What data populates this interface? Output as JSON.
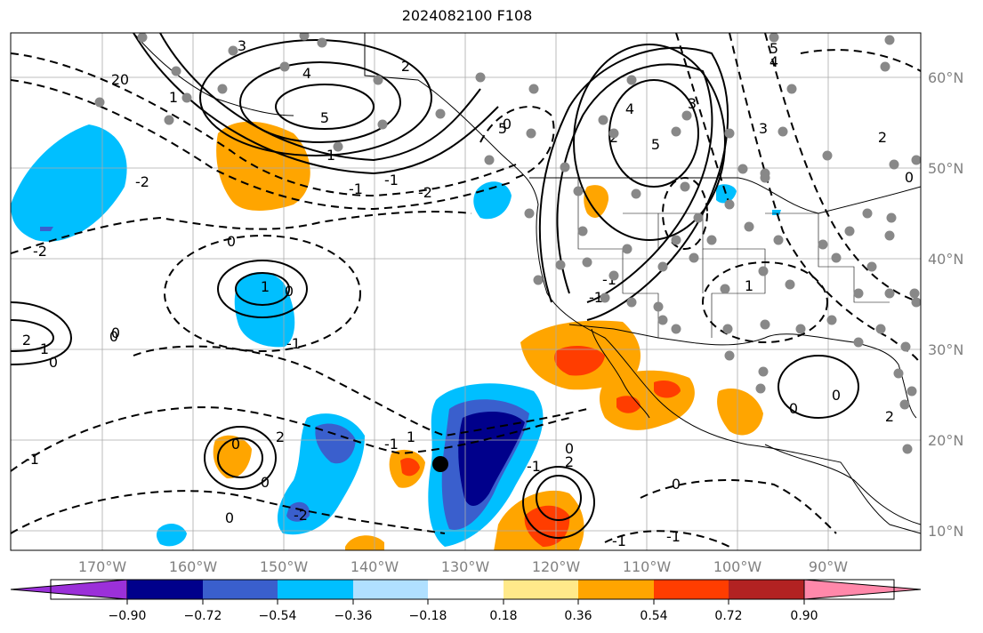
{
  "title": "2024082100 F108",
  "map": {
    "lon_ticks": [
      "170°W",
      "160°W",
      "150°W",
      "140°W",
      "130°W",
      "120°W",
      "110°W",
      "100°W",
      "90°W"
    ],
    "lat_ticks": [
      "60°N",
      "50°N",
      "40°N",
      "30°N",
      "20°N",
      "10°N"
    ],
    "extent": {
      "lon_min": -180,
      "lon_max": -80,
      "lat_min": 8,
      "lat_max": 65
    }
  },
  "colorbar": {
    "ticks": [
      "−0.90",
      "−0.72",
      "−0.54",
      "−0.36",
      "−0.18",
      "0.18",
      "0.36",
      "0.54",
      "0.72",
      "0.90"
    ],
    "colors": [
      "#9b30d9",
      "#00008b",
      "#3a5fcd",
      "#00bfff",
      "#b0e0ff",
      "#ffffff",
      "#ffe98a",
      "#ffa500",
      "#ff3d00",
      "#b22222",
      "#ff88aa"
    ]
  },
  "contour_labels": [
    "3",
    "4",
    "5",
    "2",
    "0",
    "1",
    "-1",
    "-2",
    "4",
    "3",
    "5",
    "2",
    "1",
    "1",
    "0",
    "-1",
    "2",
    "0",
    "1",
    "0",
    "-1",
    "1",
    "0",
    "2",
    "0",
    "0",
    "0",
    "2",
    "-1",
    "-1",
    "0",
    "-2",
    "0",
    "0",
    "1",
    "-2",
    "0",
    "-1",
    "0",
    "3",
    "5",
    "4",
    "2",
    "-2",
    "-1",
    "2",
    "0",
    "2",
    "5",
    "-1",
    "-1",
    "0",
    "-1"
  ],
  "colors": {
    "accent": "#000000",
    "station_dot": "#888888"
  }
}
